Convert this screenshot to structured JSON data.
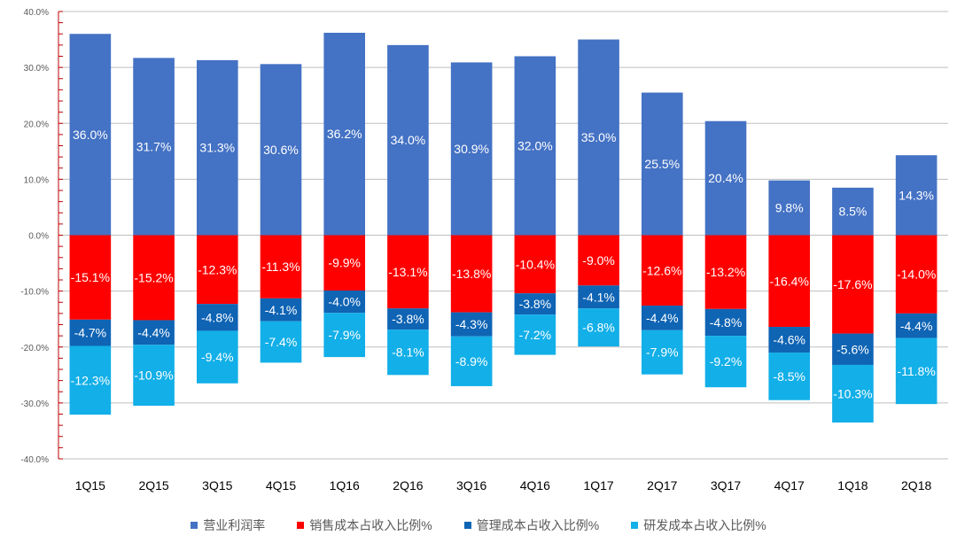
{
  "chart_data": {
    "type": "bar",
    "stacked": true,
    "title": "",
    "xlabel": "",
    "ylabel": "",
    "ylim": [
      -40,
      40
    ],
    "yticks": [
      40,
      30,
      20,
      10,
      0,
      -10,
      -20,
      -30,
      -40
    ],
    "ytick_labels": [
      "40.0%",
      "30.0%",
      "20.0%",
      "10.0%",
      "0.0%",
      "-10.0%",
      "-20.0%",
      "-30.0%",
      "-40.0%"
    ],
    "grid": true,
    "legend_position": "bottom",
    "categories": [
      "1Q15",
      "2Q15",
      "3Q15",
      "4Q15",
      "1Q16",
      "2Q16",
      "3Q16",
      "4Q16",
      "1Q17",
      "2Q17",
      "3Q17",
      "4Q17",
      "1Q18",
      "2Q18"
    ],
    "series": [
      {
        "name": "营业利润率",
        "color": "#4472C4",
        "values": [
          36.0,
          31.7,
          31.3,
          30.6,
          36.2,
          34.0,
          30.9,
          32.0,
          35.0,
          25.5,
          20.4,
          9.8,
          8.5,
          14.3
        ],
        "labels": [
          "36.0%",
          "31.7%",
          "31.3%",
          "30.6%",
          "36.2%",
          "34.0%",
          "30.9%",
          "32.0%",
          "35.0%",
          "25.5%",
          "20.4%",
          "9.8%",
          "8.5%",
          "14.3%"
        ]
      },
      {
        "name": "销售成本占收入比例%",
        "color": "#FF0000",
        "values": [
          -15.1,
          -15.2,
          -12.3,
          -11.3,
          -9.9,
          -13.1,
          -13.8,
          -10.4,
          -9.0,
          -12.6,
          -13.2,
          -16.4,
          -17.6,
          -14.0
        ],
        "labels": [
          "-15.1%",
          "-15.2%",
          "-12.3%",
          "-11.3%",
          "-9.9%",
          "-13.1%",
          "-13.8%",
          "-10.4%",
          "-9.0%",
          "-12.6%",
          "-13.2%",
          "-16.4%",
          "-17.6%",
          "-14.0%"
        ]
      },
      {
        "name": "管理成本占收入比例%",
        "color": "#0F64B4",
        "values": [
          -4.7,
          -4.4,
          -4.8,
          -4.1,
          -4.0,
          -3.8,
          -4.3,
          -3.8,
          -4.1,
          -4.4,
          -4.8,
          -4.6,
          -5.6,
          -4.4
        ],
        "labels": [
          "-4.7%",
          "-4.4%",
          "-4.8%",
          "-4.1%",
          "-4.0%",
          "-3.8%",
          "-4.3%",
          "-3.8%",
          "-4.1%",
          "-4.4%",
          "-4.8%",
          "-4.6%",
          "-5.6%",
          "-4.4%"
        ]
      },
      {
        "name": "研发成本占收入比例%",
        "color": "#12AFE8",
        "values": [
          -12.3,
          -10.9,
          -9.4,
          -7.4,
          -7.9,
          -8.1,
          -8.9,
          -7.2,
          -6.8,
          -7.9,
          -9.2,
          -8.5,
          -10.3,
          -11.8
        ],
        "labels": [
          "-12.3%",
          "-10.9%",
          "-9.4%",
          "-7.4%",
          "-7.9%",
          "-8.1%",
          "-8.9%",
          "-7.2%",
          "-6.8%",
          "-7.9%",
          "-9.2%",
          "-8.5%",
          "-10.3%",
          "-11.8%"
        ]
      }
    ],
    "colors": {
      "grid": "#BFBFBF",
      "y_axis": "#C00000",
      "label_text": "#FFFFFF"
    }
  }
}
